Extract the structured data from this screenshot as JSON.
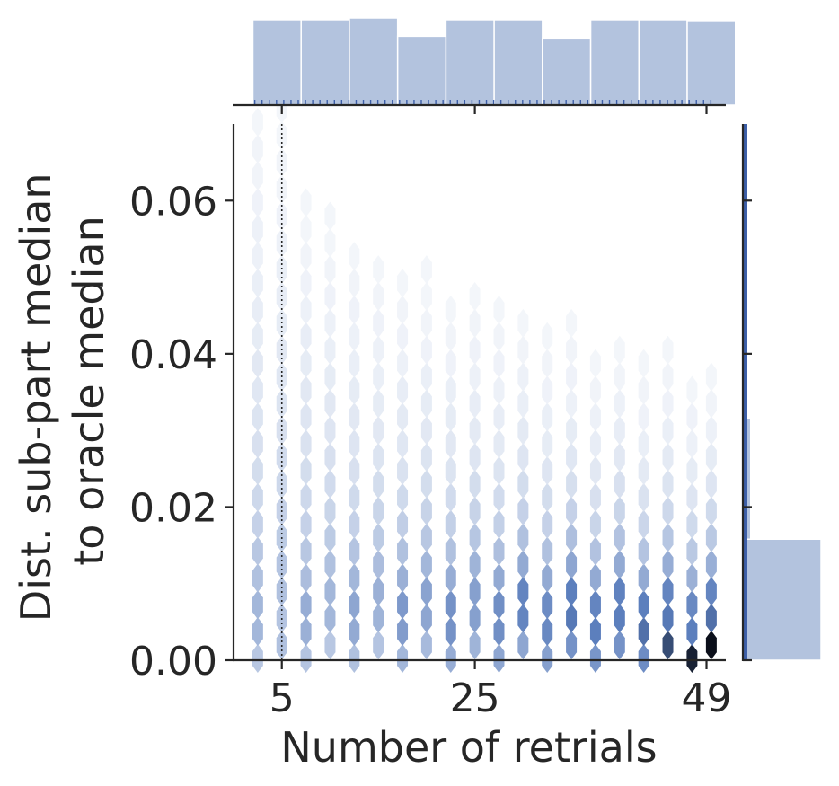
{
  "chart_data": {
    "type": "hexbin",
    "layout": "joint plot with marginal histograms",
    "xlabel": "Number of retrials",
    "ylabel_lines": [
      "Dist. sub-part median",
      "to oracle median"
    ],
    "xlim": [
      0,
      51
    ],
    "ylim": [
      0,
      0.07
    ],
    "x_ticks": [
      5,
      25,
      49
    ],
    "x_tick_labels": [
      "5",
      "25",
      "49"
    ],
    "y_ticks": [
      0,
      0.02,
      0.04,
      0.06
    ],
    "y_tick_labels": [
      "0.00",
      "0.02",
      "0.04",
      "0.06"
    ],
    "reference_line": {
      "x": 5,
      "style": "dotted"
    },
    "hexbin_columns": [
      {
        "x": 2.5,
        "density": [
          0.3,
          0.4,
          0.4,
          0.34,
          0.3,
          0.24,
          0.2,
          0.17,
          0.15,
          0.13,
          0.11,
          0.1,
          0.08,
          0.07,
          0.06,
          0.05,
          0.05,
          0.04,
          0.03,
          0.03,
          0.02
        ]
      },
      {
        "x": 5.0,
        "density": [
          0.34,
          0.32,
          0.34,
          0.32,
          0.28,
          0.24,
          0.2,
          0.18,
          0.15,
          0.13,
          0.11,
          0.1,
          0.08,
          0.07,
          0.06,
          0.05,
          0.04,
          0.03,
          0.03,
          0.02,
          0.02
        ]
      },
      {
        "x": 7.5,
        "density": [
          0.32,
          0.44,
          0.46,
          0.36,
          0.3,
          0.24,
          0.2,
          0.17,
          0.14,
          0.12,
          0.1,
          0.08,
          0.07,
          0.05,
          0.04,
          0.03,
          0.02,
          0.02,
          0.01,
          0.01,
          0.0
        ]
      },
      {
        "x": 10.0,
        "density": [
          0.3,
          0.4,
          0.4,
          0.34,
          0.28,
          0.22,
          0.18,
          0.15,
          0.12,
          0.1,
          0.08,
          0.06,
          0.05,
          0.04,
          0.03,
          0.02,
          0.02,
          0.01,
          0.0,
          0.0,
          0.0
        ]
      },
      {
        "x": 12.5,
        "density": [
          0.34,
          0.48,
          0.5,
          0.4,
          0.32,
          0.24,
          0.19,
          0.15,
          0.12,
          0.1,
          0.08,
          0.06,
          0.05,
          0.04,
          0.03,
          0.02,
          0.01,
          0.01,
          0.0,
          0.0,
          0.0
        ]
      },
      {
        "x": 15.0,
        "density": [
          0.32,
          0.42,
          0.44,
          0.36,
          0.28,
          0.22,
          0.17,
          0.13,
          0.1,
          0.08,
          0.06,
          0.05,
          0.04,
          0.03,
          0.02,
          0.01,
          0.01,
          0.0,
          0.0,
          0.0,
          0.0
        ]
      },
      {
        "x": 17.5,
        "density": [
          0.4,
          0.56,
          0.58,
          0.44,
          0.34,
          0.26,
          0.19,
          0.14,
          0.11,
          0.09,
          0.07,
          0.05,
          0.04,
          0.03,
          0.02,
          0.01,
          0.01,
          0.0,
          0.0,
          0.0,
          0.0
        ]
      },
      {
        "x": 20.0,
        "density": [
          0.38,
          0.5,
          0.52,
          0.4,
          0.3,
          0.23,
          0.17,
          0.13,
          0.1,
          0.08,
          0.06,
          0.04,
          0.03,
          0.02,
          0.02,
          0.01,
          0.0,
          0.0,
          0.0,
          0.0,
          0.0
        ]
      },
      {
        "x": 22.5,
        "density": [
          0.46,
          0.62,
          0.62,
          0.46,
          0.34,
          0.25,
          0.18,
          0.13,
          0.1,
          0.08,
          0.06,
          0.04,
          0.03,
          0.02,
          0.01,
          0.01,
          0.0,
          0.0,
          0.0,
          0.0,
          0.0
        ]
      },
      {
        "x": 25.0,
        "density": [
          0.42,
          0.54,
          0.54,
          0.42,
          0.31,
          0.23,
          0.17,
          0.12,
          0.09,
          0.07,
          0.05,
          0.04,
          0.03,
          0.02,
          0.01,
          0.0,
          0.0,
          0.0,
          0.0,
          0.0,
          0.0
        ]
      },
      {
        "x": 27.5,
        "density": [
          0.5,
          0.64,
          0.64,
          0.48,
          0.35,
          0.25,
          0.18,
          0.13,
          0.09,
          0.07,
          0.05,
          0.04,
          0.03,
          0.02,
          0.01,
          0.0,
          0.0,
          0.0,
          0.0,
          0.0,
          0.0
        ]
      },
      {
        "x": 30.0,
        "density": [
          0.5,
          0.7,
          0.7,
          0.48,
          0.34,
          0.24,
          0.17,
          0.12,
          0.09,
          0.06,
          0.05,
          0.03,
          0.02,
          0.01,
          0.01,
          0.0,
          0.0,
          0.0,
          0.0,
          0.0,
          0.0
        ]
      },
      {
        "x": 32.5,
        "density": [
          0.54,
          0.68,
          0.66,
          0.48,
          0.34,
          0.24,
          0.17,
          0.12,
          0.08,
          0.06,
          0.04,
          0.03,
          0.02,
          0.01,
          0.0,
          0.0,
          0.0,
          0.0,
          0.0,
          0.0,
          0.0
        ]
      },
      {
        "x": 35.0,
        "density": [
          0.62,
          0.76,
          0.74,
          0.5,
          0.35,
          0.24,
          0.16,
          0.11,
          0.08,
          0.05,
          0.04,
          0.03,
          0.02,
          0.01,
          0.0,
          0.0,
          0.0,
          0.0,
          0.0,
          0.0,
          0.0
        ]
      },
      {
        "x": 37.5,
        "density": [
          0.6,
          0.74,
          0.7,
          0.48,
          0.33,
          0.22,
          0.15,
          0.1,
          0.07,
          0.05,
          0.03,
          0.02,
          0.01,
          0.01,
          0.0,
          0.0,
          0.0,
          0.0,
          0.0,
          0.0,
          0.0
        ]
      },
      {
        "x": 40.0,
        "density": [
          0.62,
          0.74,
          0.72,
          0.48,
          0.33,
          0.22,
          0.15,
          0.1,
          0.07,
          0.05,
          0.03,
          0.02,
          0.01,
          0.0,
          0.0,
          0.0,
          0.0,
          0.0,
          0.0,
          0.0,
          0.0
        ]
      },
      {
        "x": 42.5,
        "density": [
          0.66,
          0.78,
          0.74,
          0.48,
          0.32,
          0.21,
          0.14,
          0.09,
          0.06,
          0.04,
          0.03,
          0.02,
          0.01,
          0.0,
          0.0,
          0.0,
          0.0,
          0.0,
          0.0,
          0.0,
          0.0
        ]
      },
      {
        "x": 45.0,
        "density": [
          0.86,
          0.76,
          0.7,
          0.46,
          0.31,
          0.2,
          0.13,
          0.09,
          0.06,
          0.04,
          0.03,
          0.02,
          0.01,
          0.0,
          0.0,
          0.0,
          0.0,
          0.0,
          0.0,
          0.0,
          0.0
        ]
      },
      {
        "x": 47.5,
        "density": [
          0.96,
          0.74,
          0.68,
          0.44,
          0.29,
          0.19,
          0.12,
          0.08,
          0.05,
          0.04,
          0.02,
          0.01,
          0.01,
          0.0,
          0.0,
          0.0,
          0.0,
          0.0,
          0.0,
          0.0,
          0.0
        ]
      },
      {
        "x": 49.5,
        "density": [
          1.0,
          0.78,
          0.7,
          0.45,
          0.29,
          0.19,
          0.12,
          0.08,
          0.05,
          0.03,
          0.02,
          0.01,
          0.0,
          0.0,
          0.0,
          0.0,
          0.0,
          0.0,
          0.0,
          0.0,
          0.0
        ]
      }
    ],
    "hexbin_y_step": 0.0035,
    "top_histogram": {
      "bin_edges": [
        2,
        7,
        12,
        17,
        22,
        27,
        32,
        37,
        42,
        47,
        52
      ],
      "relative_heights": [
        0.98,
        0.98,
        1.0,
        0.79,
        0.98,
        0.98,
        0.77,
        0.98,
        0.98,
        0.97
      ]
    },
    "right_histogram": {
      "bins": [
        {
          "y0": 0.0,
          "y1": 0.0158,
          "relative_width": 1.0
        },
        {
          "y0": 0.0158,
          "y1": 0.0316,
          "relative_width": 0.09
        },
        {
          "y0": 0.0316,
          "y1": 0.07,
          "relative_width": 0.03
        }
      ]
    },
    "colors": {
      "histogram_fill": "#b3c3de",
      "histogram_edge": "#ffffff",
      "rug": "#3d5fa8",
      "hex_low": "#f7f9fc",
      "hex_mid": "#5a7dbc",
      "hex_high": "#0b0f1a",
      "axis": "#262626"
    }
  }
}
